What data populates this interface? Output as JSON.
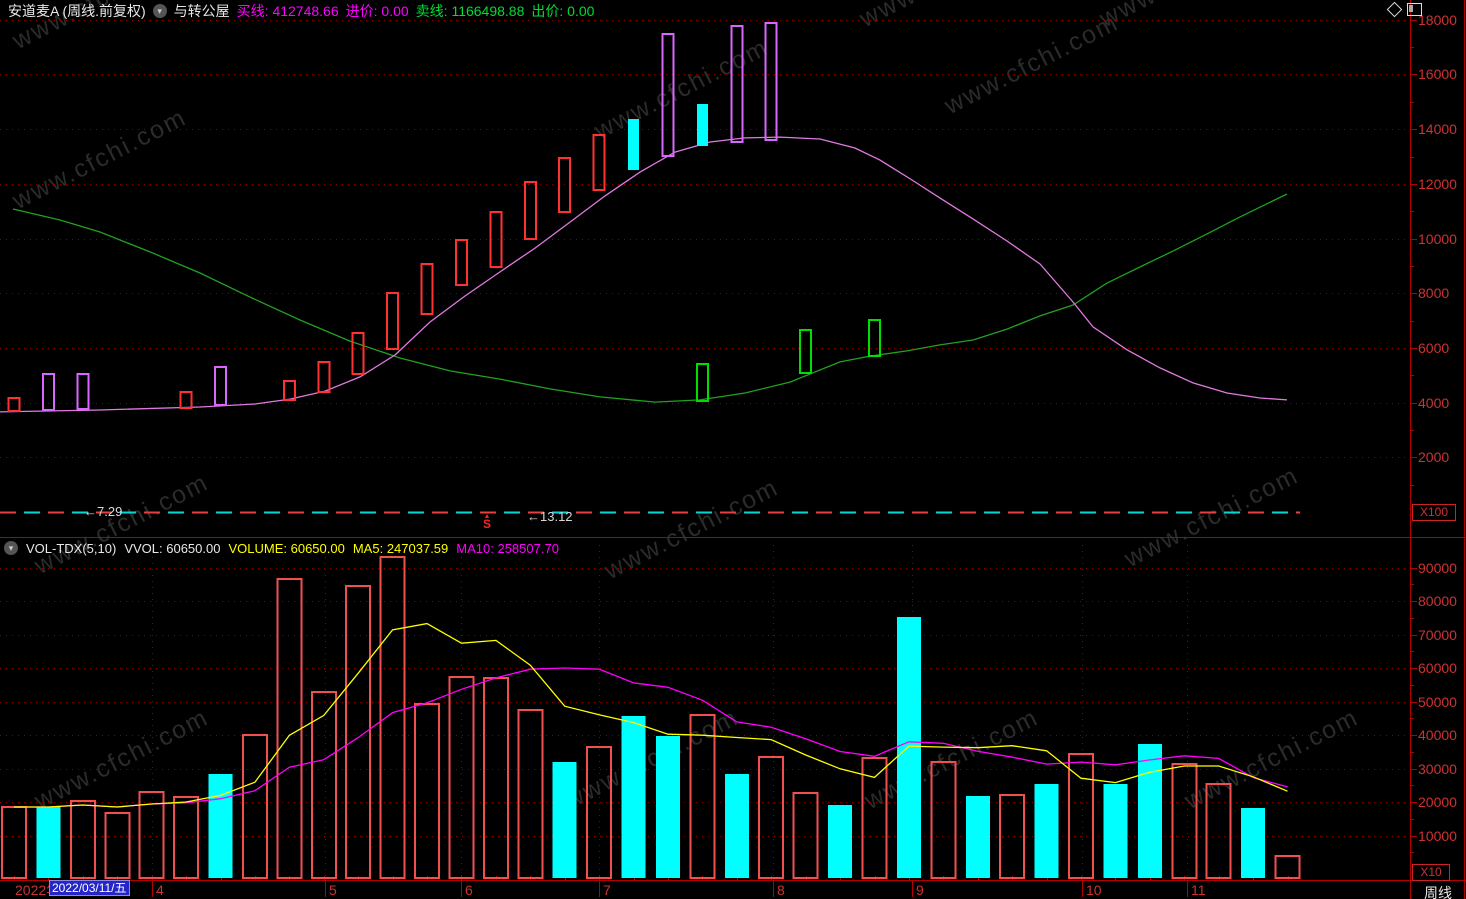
{
  "header": {
    "title": "安道麦A (周线.前复权)",
    "overlay_name": "与转公屋",
    "buy_label": "买线:",
    "buy_value": "412748.66",
    "entry_label": "进价:",
    "entry_value": "0.00",
    "sell_label": "卖线:",
    "sell_value": "1166498.88",
    "exit_label": "出价:",
    "exit_value": "0.00"
  },
  "vol_header": {
    "indicator": "VOL-TDX(5,10)",
    "vvol_label": "VVOL:",
    "vvol_value": "60650.00",
    "volume_label": "VOLUME:",
    "volume_value": "60650.00",
    "ma5_label": "MA5:",
    "ma5_value": "247037.59",
    "ma10_label": "MA10:",
    "ma10_value": "258507.70"
  },
  "zero_line": {
    "left_label": "←7.29",
    "right_label": "←13.12"
  },
  "sell_marker": "S",
  "price_axis_unit": "X100",
  "volume_axis_unit": "X10",
  "period_label": "周线",
  "x_axis": {
    "year_label": "2022年",
    "selected_date": "2022/03/11/五",
    "months": [
      [
        "4",
        152
      ],
      [
        "5",
        325
      ],
      [
        "6",
        461
      ],
      [
        "7",
        599
      ],
      [
        "8",
        773
      ],
      [
        "9",
        912
      ],
      [
        "10",
        1082
      ],
      [
        "11",
        1187
      ]
    ]
  },
  "watermark": "www.cfchi.com",
  "colors": {
    "label_red": "#cc3232",
    "border_red": "#b40000",
    "grid_red": "#8e0000",
    "candle_red": "#ff3232",
    "candle_magenta": "#d966ff",
    "candle_cyan": "#00ffff",
    "candle_green": "#00dd00",
    "line_pink": "#e07ae0",
    "line_green": "#21a121",
    "vol_bar_red": "#f05050",
    "ma5_yellow": "#ffff00",
    "ma10_magenta": "#ff00ff",
    "zero_red": "#e84040",
    "zero_cyan": "#00d8d8"
  },
  "chart_data": {
    "type": "candlestick+volume",
    "x_layout": {
      "first_center": 14,
      "step": 34.42,
      "count": 38
    },
    "price_pane": {
      "unit": "X100",
      "ylabels": [
        18000,
        16000,
        14000,
        12000,
        10000,
        8000,
        6000,
        4000,
        2000
      ],
      "zero_line_price_labels": [
        7.29,
        13.12
      ],
      "candles": [
        {
          "i": 0,
          "hi": 4170,
          "lo": 3690,
          "c": "red"
        },
        {
          "i": 1,
          "hi": 5050,
          "lo": 3730,
          "c": "magenta"
        },
        {
          "i": 2,
          "hi": 5050,
          "lo": 3770,
          "c": "magenta"
        },
        {
          "i": 5,
          "hi": 4390,
          "lo": 3800,
          "c": "red"
        },
        {
          "i": 6,
          "hi": 5300,
          "lo": 3910,
          "c": "magenta"
        },
        {
          "i": 8,
          "hi": 4790,
          "lo": 4100,
          "c": "red"
        },
        {
          "i": 9,
          "hi": 5490,
          "lo": 4390,
          "c": "red"
        },
        {
          "i": 10,
          "hi": 6550,
          "lo": 5050,
          "c": "red"
        },
        {
          "i": 11,
          "hi": 8010,
          "lo": 5960,
          "c": "red"
        },
        {
          "i": 12,
          "hi": 9070,
          "lo": 7240,
          "c": "red"
        },
        {
          "i": 13,
          "hi": 9950,
          "lo": 8300,
          "c": "red"
        },
        {
          "i": 14,
          "hi": 10970,
          "lo": 8960,
          "c": "red"
        },
        {
          "i": 15,
          "hi": 12070,
          "lo": 9980,
          "c": "red"
        },
        {
          "i": 16,
          "hi": 12950,
          "lo": 10970,
          "c": "red"
        },
        {
          "i": 17,
          "hi": 13790,
          "lo": 11780,
          "c": "red"
        },
        {
          "i": 18,
          "hi": 14370,
          "lo": 12510,
          "c": "cyan"
        },
        {
          "i": 19,
          "hi": 17480,
          "lo": 13020,
          "c": "magenta"
        },
        {
          "i": 20,
          "hi": 14920,
          "lo": 13390,
          "c": "cyan"
        },
        {
          "i": 21,
          "hi": 17770,
          "lo": 13530,
          "c": "magenta"
        },
        {
          "i": 22,
          "hi": 17880,
          "lo": 13600,
          "c": "magenta"
        },
        {
          "i": 20,
          "hi": 5410,
          "lo": 4060,
          "c": "green"
        },
        {
          "i": 23,
          "hi": 6660,
          "lo": 5080,
          "c": "green"
        },
        {
          "i": 25,
          "hi": 7020,
          "lo": 5710,
          "c": "green"
        }
      ],
      "ma_pink": [
        [
          0,
          3660
        ],
        [
          100,
          3730
        ],
        [
          200,
          3840
        ],
        [
          255,
          3950
        ],
        [
          290,
          4130
        ],
        [
          325,
          4420
        ],
        [
          360,
          4940
        ],
        [
          395,
          5740
        ],
        [
          430,
          6950
        ],
        [
          465,
          7900
        ],
        [
          500,
          8780
        ],
        [
          535,
          9650
        ],
        [
          570,
          10600
        ],
        [
          605,
          11560
        ],
        [
          640,
          12430
        ],
        [
          675,
          13160
        ],
        [
          710,
          13530
        ],
        [
          745,
          13680
        ],
        [
          780,
          13710
        ],
        [
          820,
          13640
        ],
        [
          855,
          13310
        ],
        [
          880,
          12870
        ],
        [
          912,
          12140
        ],
        [
          940,
          11480
        ],
        [
          973,
          10720
        ],
        [
          1007,
          9910
        ],
        [
          1040,
          9070
        ],
        [
          1073,
          7680
        ],
        [
          1093,
          6770
        ],
        [
          1127,
          5930
        ],
        [
          1160,
          5270
        ],
        [
          1193,
          4720
        ],
        [
          1227,
          4350
        ],
        [
          1260,
          4170
        ],
        [
          1287,
          4100
        ]
      ],
      "ma_green": [
        [
          13,
          11080
        ],
        [
          60,
          10680
        ],
        [
          100,
          10240
        ],
        [
          150,
          9510
        ],
        [
          200,
          8740
        ],
        [
          250,
          7860
        ],
        [
          300,
          7020
        ],
        [
          350,
          6250
        ],
        [
          400,
          5630
        ],
        [
          450,
          5160
        ],
        [
          500,
          4860
        ],
        [
          550,
          4500
        ],
        [
          600,
          4210
        ],
        [
          655,
          4020
        ],
        [
          700,
          4100
        ],
        [
          745,
          4350
        ],
        [
          790,
          4750
        ],
        [
          840,
          5490
        ],
        [
          870,
          5700
        ],
        [
          907,
          5890
        ],
        [
          940,
          6110
        ],
        [
          973,
          6290
        ],
        [
          1007,
          6690
        ],
        [
          1040,
          7170
        ],
        [
          1073,
          7570
        ],
        [
          1107,
          8370
        ],
        [
          1150,
          9140
        ],
        [
          1173,
          9540
        ],
        [
          1207,
          10170
        ],
        [
          1240,
          10790
        ],
        [
          1287,
          11630
        ]
      ]
    },
    "volume_pane": {
      "unit": "X10",
      "ylabels": [
        90000,
        80000,
        70000,
        60000,
        50000,
        40000,
        30000,
        20000,
        10000
      ],
      "volumes": [
        18500,
        18500,
        20300,
        16700,
        23000,
        21500,
        28400,
        40000,
        86600,
        52800,
        84500,
        93100,
        49300,
        57300,
        57000,
        47500,
        31900,
        36400,
        45700,
        39700,
        46000,
        28400,
        33400,
        22700,
        19100,
        33100,
        75200,
        31900,
        21800,
        22100,
        25400,
        34300,
        25400,
        37300,
        31300,
        25400,
        18200,
        3900
      ],
      "bar_colors": [
        "r",
        "c",
        "r",
        "r",
        "r",
        "r",
        "c",
        "r",
        "r",
        "r",
        "r",
        "r",
        "r",
        "r",
        "r",
        "r",
        "c",
        "r",
        "c",
        "c",
        "r",
        "c",
        "r",
        "r",
        "c",
        "r",
        "c",
        "r",
        "c",
        "r",
        "c",
        "r",
        "c",
        "c",
        "r",
        "r",
        "c",
        "r"
      ],
      "ma": "MA5 and MA10 computed from volumes (partial windows at start)"
    }
  }
}
